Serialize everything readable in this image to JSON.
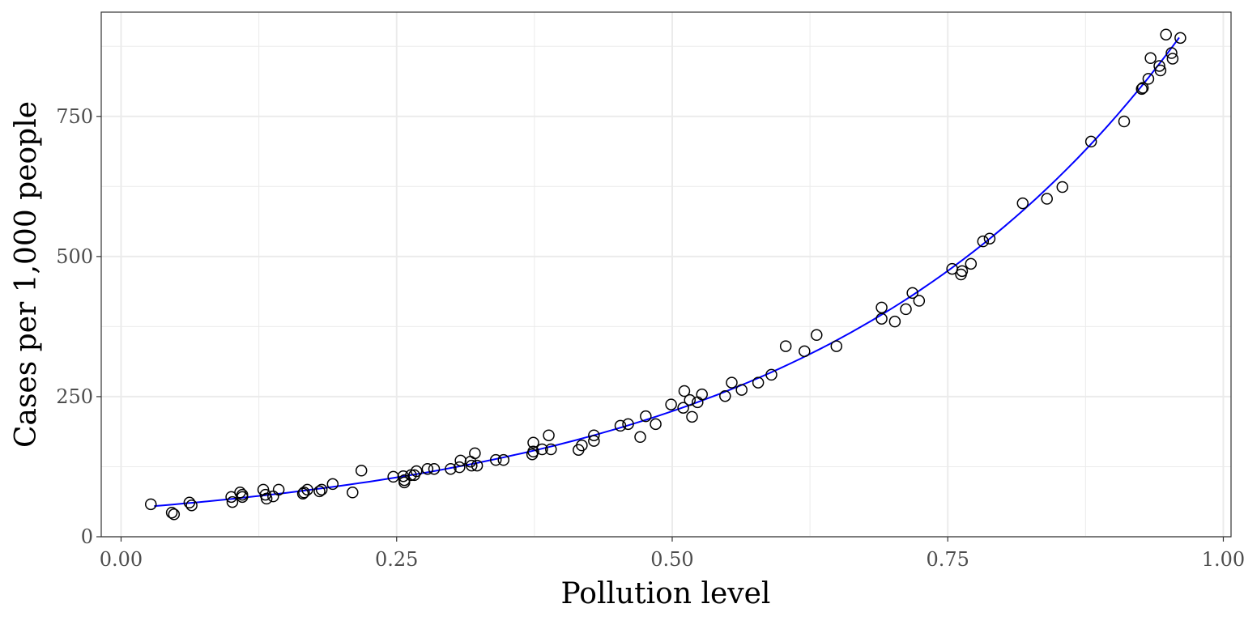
{
  "chart_data": {
    "type": "scatter",
    "title": "",
    "xlabel": "Pollution level",
    "ylabel": "Cases per 1,000 people",
    "xlim": [
      -0.018,
      1.007
    ],
    "ylim": [
      0,
      936
    ],
    "xticks": [
      0,
      0.25,
      0.5,
      0.75,
      1.0
    ],
    "xtick_labels": [
      "0.00",
      "0.25",
      "0.50",
      "0.75",
      "1.00"
    ],
    "yticks": [
      0,
      250,
      500,
      750
    ],
    "ytick_labels": [
      "0",
      "250",
      "500",
      "750"
    ],
    "grid": true,
    "legend": "none",
    "colors": {
      "points": "#000000",
      "fit": "#0000ff",
      "grid": "#ebebeb",
      "frame": "#333333"
    },
    "fit": {
      "type": "exponential",
      "formula": "y = a*exp(b*x)",
      "a": 50,
      "b": 3.0,
      "x_range": [
        0.03,
        0.96
      ]
    },
    "points": [
      [
        0.027,
        58
      ],
      [
        0.046,
        43
      ],
      [
        0.048,
        40
      ],
      [
        0.062,
        61
      ],
      [
        0.064,
        56
      ],
      [
        0.1,
        71
      ],
      [
        0.101,
        62
      ],
      [
        0.108,
        79
      ],
      [
        0.11,
        71
      ],
      [
        0.11,
        75
      ],
      [
        0.129,
        84
      ],
      [
        0.131,
        75
      ],
      [
        0.132,
        68
      ],
      [
        0.138,
        72
      ],
      [
        0.143,
        84
      ],
      [
        0.165,
        77
      ],
      [
        0.166,
        79
      ],
      [
        0.169,
        84
      ],
      [
        0.18,
        81
      ],
      [
        0.182,
        84
      ],
      [
        0.192,
        94
      ],
      [
        0.21,
        79
      ],
      [
        0.218,
        118
      ],
      [
        0.247,
        107
      ],
      [
        0.256,
        108
      ],
      [
        0.257,
        97
      ],
      [
        0.257,
        101
      ],
      [
        0.263,
        110
      ],
      [
        0.266,
        110
      ],
      [
        0.268,
        117
      ],
      [
        0.278,
        121
      ],
      [
        0.284,
        121
      ],
      [
        0.299,
        121
      ],
      [
        0.307,
        124
      ],
      [
        0.308,
        136
      ],
      [
        0.317,
        134
      ],
      [
        0.318,
        127
      ],
      [
        0.321,
        149
      ],
      [
        0.323,
        127
      ],
      [
        0.34,
        137
      ],
      [
        0.347,
        137
      ],
      [
        0.373,
        147
      ],
      [
        0.374,
        152
      ],
      [
        0.374,
        168
      ],
      [
        0.382,
        156
      ],
      [
        0.388,
        181
      ],
      [
        0.39,
        156
      ],
      [
        0.415,
        155
      ],
      [
        0.418,
        163
      ],
      [
        0.429,
        171
      ],
      [
        0.429,
        181
      ],
      [
        0.453,
        198
      ],
      [
        0.46,
        201
      ],
      [
        0.471,
        178
      ],
      [
        0.476,
        215
      ],
      [
        0.485,
        201
      ],
      [
        0.499,
        236
      ],
      [
        0.51,
        230
      ],
      [
        0.511,
        260
      ],
      [
        0.516,
        244
      ],
      [
        0.518,
        214
      ],
      [
        0.523,
        240
      ],
      [
        0.527,
        254
      ],
      [
        0.548,
        251
      ],
      [
        0.554,
        275
      ],
      [
        0.563,
        262
      ],
      [
        0.578,
        275
      ],
      [
        0.59,
        289
      ],
      [
        0.603,
        340
      ],
      [
        0.62,
        331
      ],
      [
        0.631,
        360
      ],
      [
        0.649,
        340
      ],
      [
        0.69,
        409
      ],
      [
        0.69,
        389
      ],
      [
        0.702,
        384
      ],
      [
        0.712,
        406
      ],
      [
        0.718,
        435
      ],
      [
        0.724,
        421
      ],
      [
        0.754,
        478
      ],
      [
        0.762,
        468
      ],
      [
        0.763,
        474
      ],
      [
        0.771,
        487
      ],
      [
        0.782,
        527
      ],
      [
        0.788,
        532
      ],
      [
        0.818,
        595
      ],
      [
        0.84,
        603
      ],
      [
        0.854,
        624
      ],
      [
        0.88,
        705
      ],
      [
        0.91,
        741
      ],
      [
        0.926,
        799
      ],
      [
        0.927,
        801
      ],
      [
        0.932,
        817
      ],
      [
        0.934,
        854
      ],
      [
        0.942,
        840
      ],
      [
        0.943,
        832
      ],
      [
        0.948,
        896
      ],
      [
        0.953,
        863
      ],
      [
        0.954,
        853
      ],
      [
        0.961,
        890
      ]
    ]
  }
}
